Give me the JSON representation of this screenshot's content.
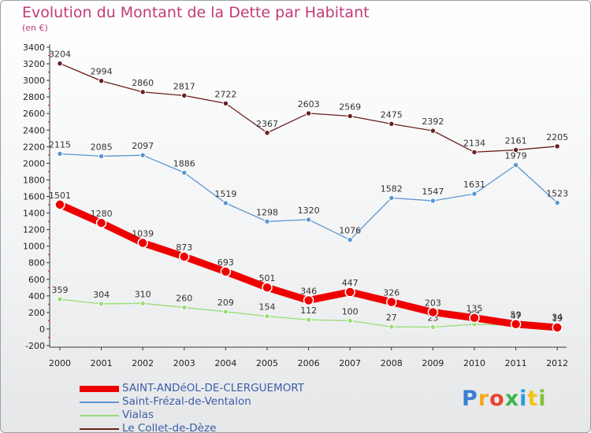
{
  "title": "Evolution du Montant de la Dette par Habitant",
  "subtitle": "(en €)",
  "logo": {
    "text": "Proxiti",
    "colors": [
      "#3a7fd5",
      "#f5a623",
      "#e8432e",
      "#3cb54a",
      "#2b9be0",
      "#f0c419",
      "#7fc241"
    ]
  },
  "chart_data": {
    "type": "line",
    "x": [
      "2000",
      "2001",
      "2002",
      "2003",
      "2004",
      "2005",
      "2006",
      "2007",
      "2008",
      "2009",
      "2010",
      "2011",
      "2012"
    ],
    "ylim": [
      -200,
      3400
    ],
    "yticks": [
      "-200",
      "0",
      "200",
      "400",
      "600",
      "800",
      "1000",
      "1200",
      "1400",
      "1600",
      "1800",
      "2000",
      "2200",
      "2400",
      "2600",
      "2800",
      "3000",
      "3200",
      "3400"
    ],
    "grid": false,
    "legend": "bottom-left",
    "series": [
      {
        "name": "Le Collet-de-Dèze",
        "color": "#6b1f1f",
        "values": [
          3204,
          2994,
          2860,
          2817,
          2722,
          2367,
          2603,
          2569,
          2475,
          2392,
          2134,
          2161,
          2205
        ]
      },
      {
        "name": "Saint-Frézal-de-Ventalon",
        "color": "#5c97d0",
        "values": [
          2115,
          2085,
          2097,
          1886,
          1519,
          1298,
          1320,
          1076,
          1582,
          1547,
          1631,
          1979,
          1523
        ]
      },
      {
        "name": "Vialas",
        "color": "#99dd77",
        "values": [
          359,
          304,
          310,
          260,
          209,
          154,
          112,
          100,
          27,
          23,
          57,
          47,
          34
        ]
      },
      {
        "name": "SAINT-ANDéOL-DE-CLERGUEMORT",
        "color": "#ee0000",
        "highlight": true,
        "values": [
          1501,
          1280,
          1039,
          873,
          693,
          501,
          346,
          447,
          326,
          203,
          135,
          59,
          19
        ]
      }
    ],
    "legend_order": [
      "SAINT-ANDéOL-DE-CLERGUEMORT",
      "Saint-Frézal-de-Ventalon",
      "Vialas",
      "Le Collet-de-Dèze"
    ]
  }
}
